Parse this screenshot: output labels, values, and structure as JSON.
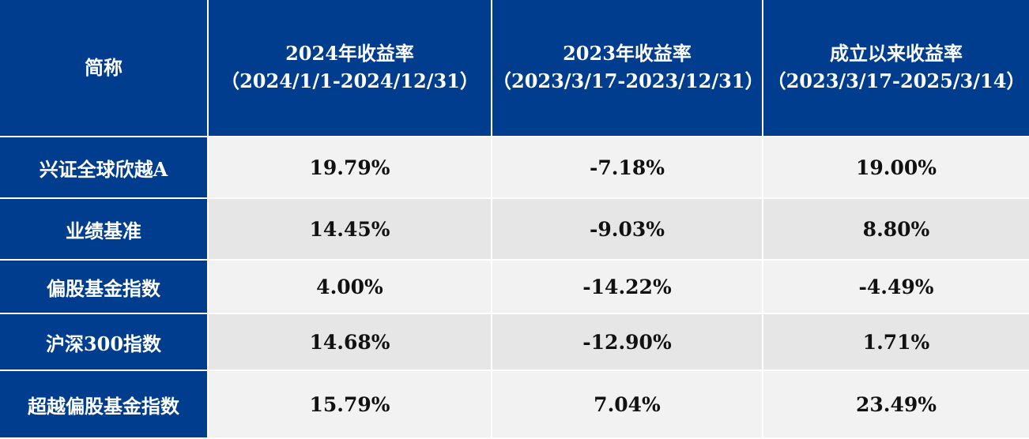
{
  "header": {
    "name_col": "简称",
    "columns": [
      {
        "title": "2024年收益率",
        "period": "（2024/1/1-2024/12/31）"
      },
      {
        "title": "2023年收益率",
        "period": "（2023/3/17-2023/12/31）"
      },
      {
        "title": "成立以来收益率",
        "period": "（2023/3/17-2025/3/14）"
      }
    ]
  },
  "rows": [
    {
      "name": "兴证全球欣越A",
      "values": [
        "19.79%",
        "-7.18%",
        "19.00%"
      ]
    },
    {
      "name": "业绩基准",
      "values": [
        "14.45%",
        "-9.03%",
        "8.80%"
      ]
    },
    {
      "name": "偏股基金指数",
      "values": [
        "4.00%",
        "-14.22%",
        "-4.49%"
      ]
    },
    {
      "name": "沪深300指数",
      "values": [
        "14.68%",
        "-12.90%",
        "1.71%"
      ]
    },
    {
      "name": "超越偏股基金指数",
      "values": [
        "15.79%",
        "7.04%",
        "23.49%"
      ]
    }
  ],
  "colors": {
    "header_bg": "#003d8f",
    "row_light": "#f2f2f2",
    "row_dark": "#e6e6e6"
  }
}
